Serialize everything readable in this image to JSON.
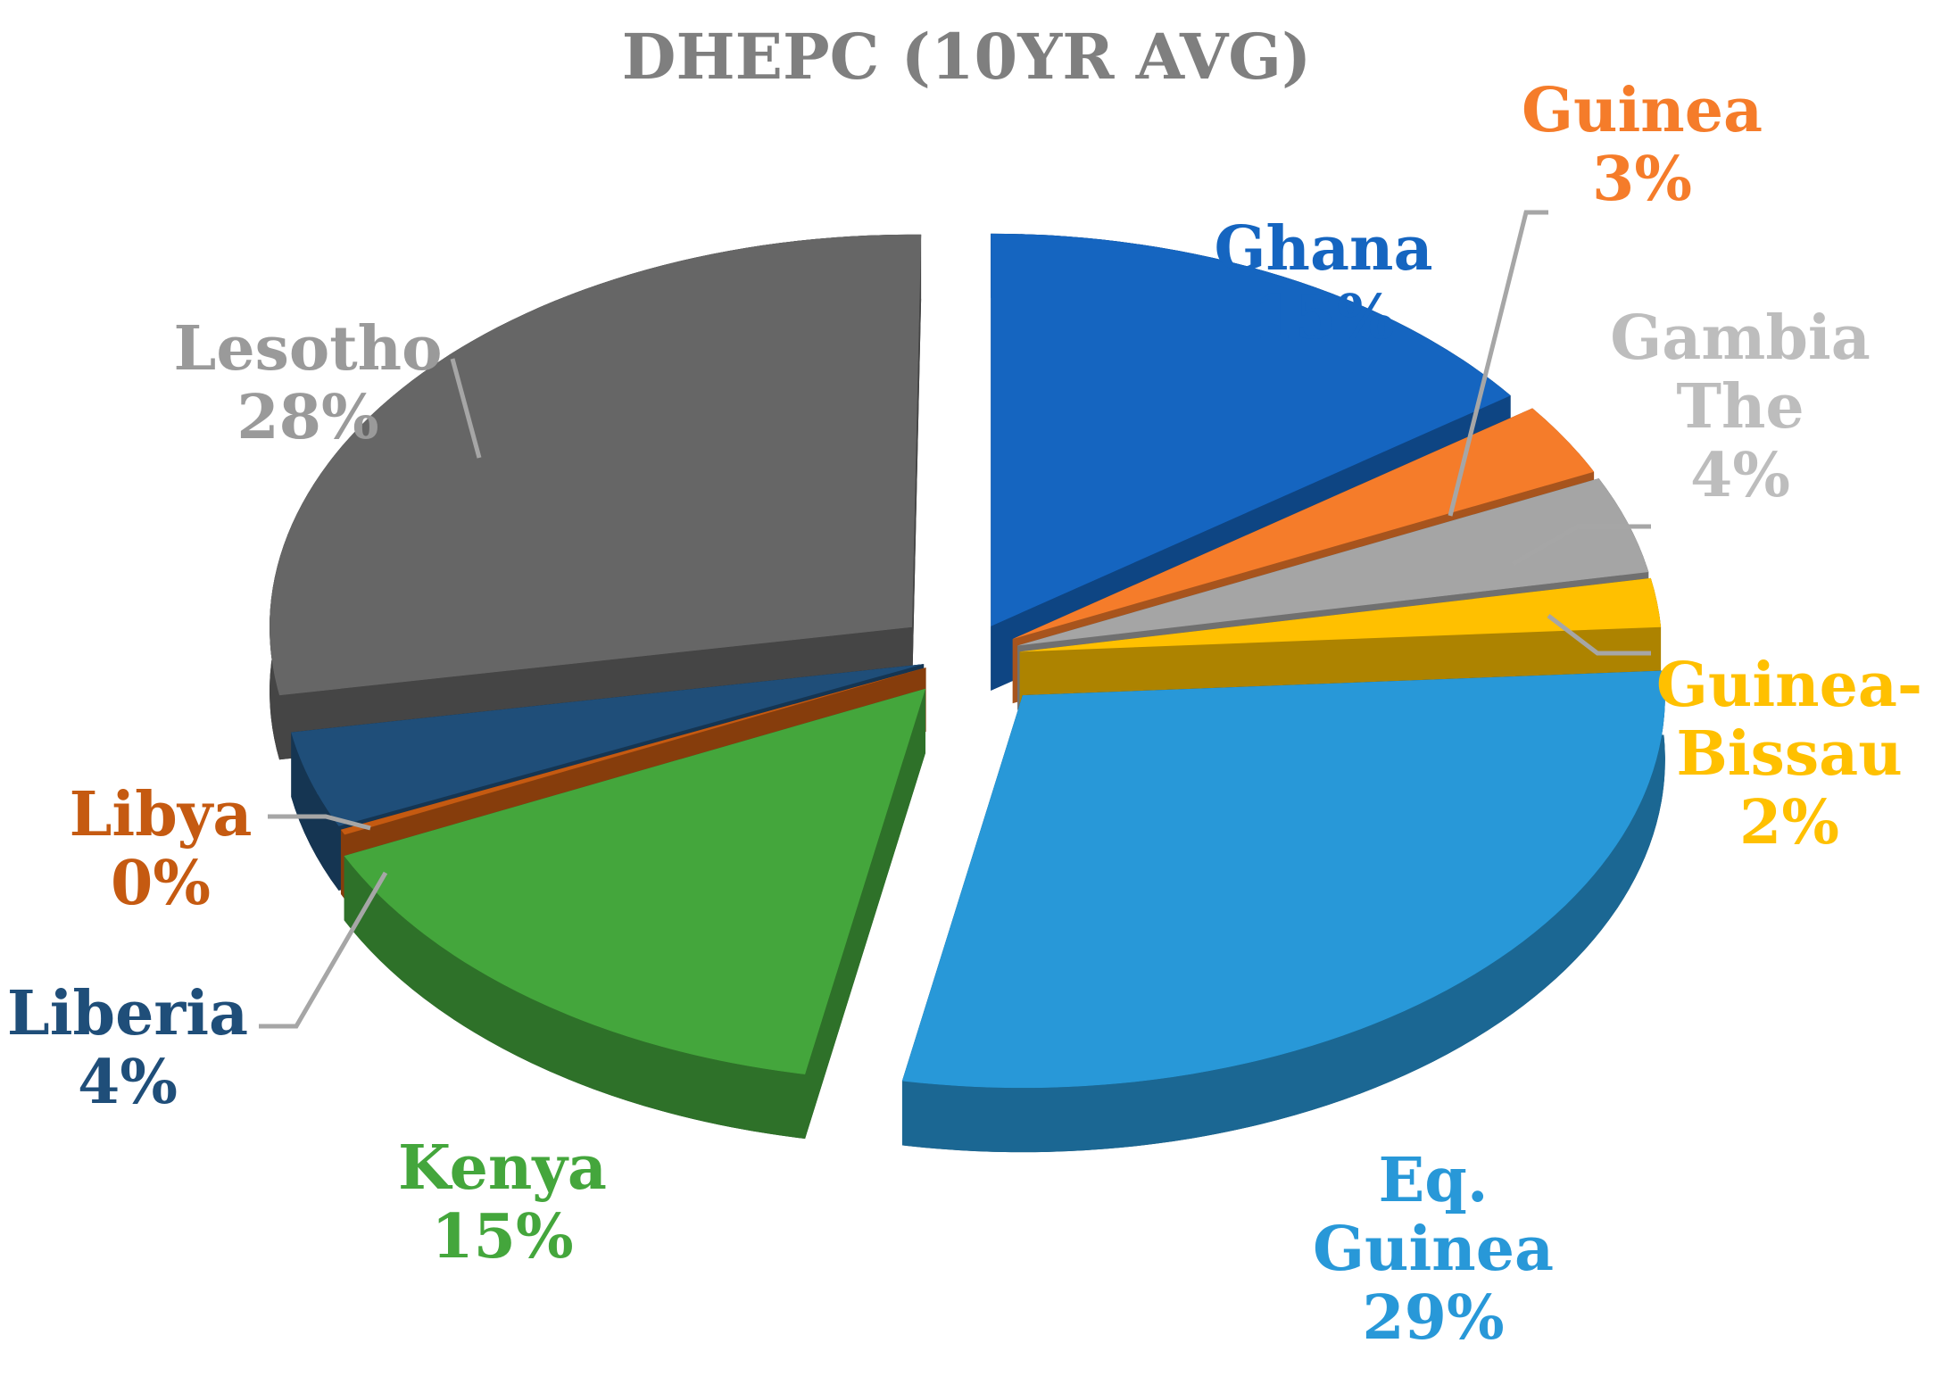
{
  "chart_data": {
    "type": "pie",
    "title": "DHEPC (10YR AVG)",
    "categories": [
      "Ghana",
      "Guinea",
      "Gambia The",
      "Guinea-Bissau",
      "Eq. Guinea",
      "Kenya",
      "Libya",
      "Liberia",
      "Lesotho"
    ],
    "values": [
      15,
      3,
      4,
      2,
      29,
      15,
      0,
      4,
      28
    ],
    "value_labels": [
      "15%",
      "3%",
      "4%",
      "2%",
      "29%",
      "15%",
      "0%",
      "4%",
      "28%"
    ],
    "label_lines": [
      [
        "Ghana"
      ],
      [
        "Guinea"
      ],
      [
        "Gambia",
        "The"
      ],
      [
        "Guinea-",
        "Bissau"
      ],
      [
        "Eq.",
        "Guinea"
      ],
      [
        "Kenya"
      ],
      [
        "Libya"
      ],
      [
        "Liberia"
      ],
      [
        "Lesotho"
      ]
    ],
    "colors": [
      "#1565c0",
      "#f57c2a",
      "#a5a5a5",
      "#ffc000",
      "#2898d8",
      "#44a63c",
      "#c55a11",
      "#1f4e79",
      "#666666"
    ],
    "label_colors": [
      "#1565c0",
      "#f57c2a",
      "#bdbdbd",
      "#ffc000",
      "#2898d8",
      "#44a63c",
      "#c55a11",
      "#1f4e79",
      "#9a9a9a"
    ],
    "style": "3d-exploded",
    "legend": "none"
  }
}
